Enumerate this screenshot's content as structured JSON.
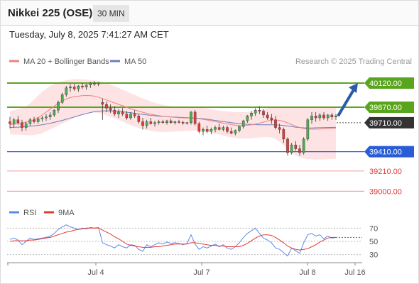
{
  "header": {
    "title": "Nikkei 225 (OSE)",
    "interval": "30 MIN",
    "datetime": "Tuesday, July 8, 2025 7:41:27 AM CET"
  },
  "legend": {
    "ma20": "MA 20 + Bollinger Bands",
    "ma50": "MA 50",
    "copyright": "Research © 2025 Trading Central",
    "rsi": "RSI",
    "ma9": "9MA"
  },
  "colors": {
    "green": "#5aa51e",
    "blue": "#2a5dd5",
    "red": "#e53935",
    "pink_line": "#f2a7a7",
    "band": "#fde3e3",
    "ma20": "#f08080",
    "ma50": "#6a7fbf",
    "candle_up": "#4caf50",
    "candle_down": "#e53935",
    "current": "#333333",
    "rsi": "#5b8ae6",
    "arrow": "#2a5aa8"
  },
  "chart_data": [
    {
      "type": "candlestick",
      "ylim": [
        38900,
        40260
      ],
      "x_ticks": [
        "Jul 4",
        "Jul 7",
        "Jul 8",
        "Jul 16"
      ],
      "levels": [
        {
          "value": 40120.0,
          "label": "40120.00",
          "kind": "resistance"
        },
        {
          "value": 39870.0,
          "label": "39870.00",
          "kind": "resistance"
        },
        {
          "value": 39710.0,
          "label": "39710.00",
          "kind": "current"
        },
        {
          "value": 39410.0,
          "label": "39410.00",
          "kind": "support"
        },
        {
          "value": 39210.0,
          "label": "39210.00",
          "kind": "target"
        },
        {
          "value": 39000.0,
          "label": "39000.00",
          "kind": "target"
        }
      ],
      "ohlc": [
        [
          39720,
          39770,
          39650,
          39700
        ],
        [
          39700,
          39760,
          39660,
          39740
        ],
        [
          39740,
          39780,
          39690,
          39710
        ],
        [
          39710,
          39740,
          39620,
          39660
        ],
        [
          39660,
          39720,
          39630,
          39700
        ],
        [
          39700,
          39760,
          39680,
          39740
        ],
        [
          39740,
          39770,
          39700,
          39720
        ],
        [
          39720,
          39770,
          39700,
          39750
        ],
        [
          39750,
          39780,
          39720,
          39760
        ],
        [
          39760,
          39800,
          39730,
          39770
        ],
        [
          39770,
          39820,
          39740,
          39790
        ],
        [
          39790,
          39850,
          39770,
          39840
        ],
        [
          39840,
          39940,
          39810,
          39920
        ],
        [
          39920,
          40020,
          39900,
          40000
        ],
        [
          40000,
          40090,
          39980,
          40070
        ],
        [
          40070,
          40110,
          40030,
          40080
        ],
        [
          40080,
          40110,
          40040,
          40060
        ],
        [
          40060,
          40100,
          40030,
          40090
        ],
        [
          40090,
          40120,
          40060,
          40080
        ],
        [
          40080,
          40110,
          40050,
          40100
        ],
        [
          40100,
          40130,
          40070,
          40120
        ],
        [
          40120,
          40140,
          40090,
          40110
        ],
        [
          40110,
          40130,
          40090,
          40120
        ],
        [
          39920,
          39960,
          39740,
          39900
        ],
        [
          39900,
          39930,
          39820,
          39860
        ],
        [
          39860,
          39900,
          39810,
          39840
        ],
        [
          39840,
          39880,
          39780,
          39800
        ],
        [
          39800,
          39850,
          39760,
          39820
        ],
        [
          39820,
          39860,
          39780,
          39800
        ],
        [
          39800,
          39830,
          39740,
          39760
        ],
        [
          39760,
          39820,
          39740,
          39800
        ],
        [
          39800,
          39840,
          39760,
          39780
        ],
        [
          39780,
          39800,
          39700,
          39720
        ],
        [
          39720,
          39760,
          39640,
          39680
        ],
        [
          39680,
          39740,
          39650,
          39720
        ],
        [
          39720,
          39760,
          39690,
          39700
        ],
        [
          39700,
          39730,
          39670,
          39710
        ],
        [
          39710,
          39740,
          39690,
          39720
        ],
        [
          39720,
          39740,
          39700,
          39710
        ],
        [
          39710,
          39740,
          39690,
          39730
        ],
        [
          39730,
          39750,
          39700,
          39710
        ],
        [
          39710,
          39730,
          39690,
          39720
        ],
        [
          39720,
          39740,
          39700,
          39715
        ],
        [
          39715,
          39730,
          39690,
          39705
        ],
        [
          39705,
          39720,
          39690,
          39710
        ],
        [
          39710,
          39830,
          39690,
          39820
        ],
        [
          39820,
          39840,
          39680,
          39700
        ],
        [
          39700,
          39720,
          39600,
          39620
        ],
        [
          39620,
          39660,
          39580,
          39640
        ],
        [
          39640,
          39680,
          39600,
          39620
        ],
        [
          39620,
          39660,
          39590,
          39640
        ],
        [
          39640,
          39680,
          39610,
          39660
        ],
        [
          39660,
          39700,
          39630,
          39640
        ],
        [
          39640,
          39680,
          39620,
          39660
        ],
        [
          39660,
          39680,
          39600,
          39620
        ],
        [
          39620,
          39660,
          39590,
          39600
        ],
        [
          39600,
          39640,
          39580,
          39630
        ],
        [
          39630,
          39680,
          39610,
          39670
        ],
        [
          39670,
          39740,
          39650,
          39730
        ],
        [
          39730,
          39790,
          39710,
          39780
        ],
        [
          39780,
          39830,
          39740,
          39810
        ],
        [
          39810,
          39860,
          39780,
          39840
        ],
        [
          39840,
          39880,
          39800,
          39830
        ],
        [
          39830,
          39850,
          39760,
          39790
        ],
        [
          39790,
          39820,
          39740,
          39760
        ],
        [
          39760,
          39800,
          39700,
          39740
        ],
        [
          39740,
          39780,
          39640,
          39660
        ],
        [
          39660,
          39700,
          39600,
          39640
        ],
        [
          39640,
          39660,
          39500,
          39540
        ],
        [
          39540,
          39560,
          39370,
          39400
        ],
        [
          39400,
          39500,
          39380,
          39480
        ],
        [
          39480,
          39520,
          39420,
          39440
        ],
        [
          39440,
          39480,
          39370,
          39400
        ],
        [
          39400,
          39560,
          39380,
          39540
        ],
        [
          39540,
          39760,
          39520,
          39740
        ],
        [
          39740,
          39820,
          39700,
          39780
        ],
        [
          39780,
          39820,
          39720,
          39760
        ],
        [
          39760,
          39810,
          39730,
          39790
        ],
        [
          39790,
          39820,
          39740,
          39760
        ],
        [
          39760,
          39800,
          39730,
          39790
        ],
        [
          39790,
          39810,
          39740,
          39770
        ],
        [
          39770,
          39800,
          39740,
          39780
        ]
      ],
      "ma20": [
        39690,
        39695,
        39700,
        39705,
        39715,
        39725,
        39740,
        39760,
        39790,
        39820,
        39850,
        39880,
        39910,
        39935,
        39955,
        39970,
        39980,
        39985,
        39990,
        39992,
        39990,
        39985,
        39975,
        39960,
        39945,
        39930,
        39915,
        39900,
        39885,
        39870,
        39855,
        39842,
        39830,
        39818,
        39808,
        39798,
        39790,
        39783,
        39777,
        39772,
        39768,
        39765,
        39762,
        39760,
        39758,
        39757,
        39756,
        39752,
        39745,
        39738,
        39730,
        39722,
        39714,
        39706,
        39698,
        39690,
        39684,
        39680,
        39680,
        39683,
        39688,
        39695,
        39705,
        39716,
        39728,
        39736,
        39738,
        39734,
        39724,
        39708,
        39690,
        39674,
        39660,
        39650,
        39645,
        39643,
        39643,
        39645,
        39648,
        39650,
        39652,
        39654
      ],
      "bb_upper": [
        39830,
        39840,
        39850,
        39860,
        39880,
        39910,
        39950,
        39990,
        40030,
        40060,
        40090,
        40110,
        40130,
        40140,
        40150,
        40155,
        40160,
        40160,
        40158,
        40156,
        40152,
        40148,
        40142,
        40132,
        40120,
        40105,
        40088,
        40070,
        40052,
        40034,
        40016,
        39998,
        39980,
        39962,
        39946,
        39930,
        39916,
        39904,
        39894,
        39886,
        39880,
        39876,
        39874,
        39872,
        39870,
        39870,
        39870,
        39868,
        39864,
        39858,
        39850,
        39842,
        39836,
        39830,
        39826,
        39823,
        39821,
        39820,
        39820,
        39822,
        39826,
        39832,
        39842,
        39852,
        39862,
        39868,
        39870,
        39870,
        39870,
        39870,
        39870,
        39870,
        39870,
        39870,
        39870,
        39870,
        39870,
        39870,
        39870,
        39870,
        39870,
        39870
      ],
      "bb_lower": [
        39590,
        39588,
        39586,
        39584,
        39582,
        39580,
        39582,
        39590,
        39600,
        39620,
        39640,
        39660,
        39680,
        39700,
        39720,
        39740,
        39760,
        39780,
        39800,
        39810,
        39815,
        39815,
        39810,
        39800,
        39785,
        39770,
        39755,
        39740,
        39722,
        39704,
        39686,
        39670,
        39656,
        39644,
        39634,
        39626,
        39620,
        39616,
        39614,
        39614,
        39616,
        39618,
        39620,
        39622,
        39624,
        39626,
        39628,
        39626,
        39622,
        39615,
        39606,
        39596,
        39586,
        39576,
        39566,
        39558,
        39552,
        39548,
        39546,
        39546,
        39548,
        39552,
        39556,
        39560,
        39562,
        39556,
        39540,
        39512,
        39476,
        39438,
        39402,
        39372,
        39352,
        39340,
        39334,
        39330,
        39328,
        39328,
        39330,
        39332,
        39334,
        39336
      ],
      "ma50": [
        39660,
        39662,
        39664,
        39667,
        39670,
        39674,
        39678,
        39683,
        39689,
        39696,
        39704,
        39713,
        39723,
        39734,
        39746,
        39758,
        39770,
        39782,
        39794,
        39805,
        39815,
        39823,
        39829,
        39832,
        39833,
        39832,
        39830,
        39827,
        39823,
        39818,
        39813,
        39807,
        39801,
        39796,
        39791,
        39786,
        39782,
        39778,
        39775,
        39772,
        39770,
        39768,
        39766,
        39764,
        39762,
        39760,
        39758,
        39755,
        39751,
        39746,
        39740,
        39734,
        39728,
        39722,
        39716,
        39710,
        39705,
        39700,
        39697,
        39694,
        39692,
        39690,
        39689,
        39688,
        39688,
        39688,
        39687,
        39685,
        39681,
        39676,
        39670,
        39664,
        39660,
        39657,
        39656,
        39656,
        39657,
        39658,
        39659,
        39660,
        39661,
        39662
      ],
      "forecast_target": 40120
    },
    {
      "type": "line",
      "title": "RSI",
      "ylim": [
        20,
        80
      ],
      "y_ticks": [
        "70",
        "50",
        "30"
      ],
      "series": [
        {
          "name": "RSI",
          "values": [
            53,
            55,
            52,
            45,
            50,
            55,
            53,
            54,
            55,
            56,
            58,
            62,
            68,
            72,
            75,
            72,
            70,
            68,
            70,
            69,
            71,
            70,
            71,
            48,
            45,
            43,
            40,
            45,
            42,
            40,
            45,
            44,
            38,
            35,
            45,
            42,
            45,
            48,
            46,
            49,
            47,
            48,
            47,
            45,
            47,
            60,
            46,
            38,
            42,
            40,
            43,
            46,
            42,
            45,
            40,
            38,
            42,
            48,
            56,
            62,
            66,
            70,
            62,
            55,
            52,
            48,
            40,
            38,
            33,
            28,
            40,
            36,
            32,
            48,
            60,
            62,
            58,
            60,
            54,
            58,
            55,
            56
          ]
        },
        {
          "name": "9MA",
          "values": [
            50,
            51,
            51,
            51,
            51,
            52,
            52,
            53,
            54,
            55,
            56,
            58,
            60,
            62,
            64,
            65,
            67,
            68,
            69,
            70,
            70,
            70,
            70,
            67,
            64,
            61,
            57,
            54,
            50,
            46,
            44,
            43,
            42,
            41,
            41,
            41,
            42,
            42,
            43,
            44,
            45,
            46,
            46,
            46,
            46,
            48,
            48,
            47,
            46,
            45,
            44,
            44,
            43,
            43,
            42,
            42,
            42,
            42,
            44,
            47,
            51,
            55,
            58,
            60,
            60,
            59,
            56,
            52,
            48,
            43,
            40,
            38,
            37,
            38,
            39,
            42,
            45,
            49,
            52,
            55,
            56,
            56
          ]
        }
      ]
    }
  ]
}
